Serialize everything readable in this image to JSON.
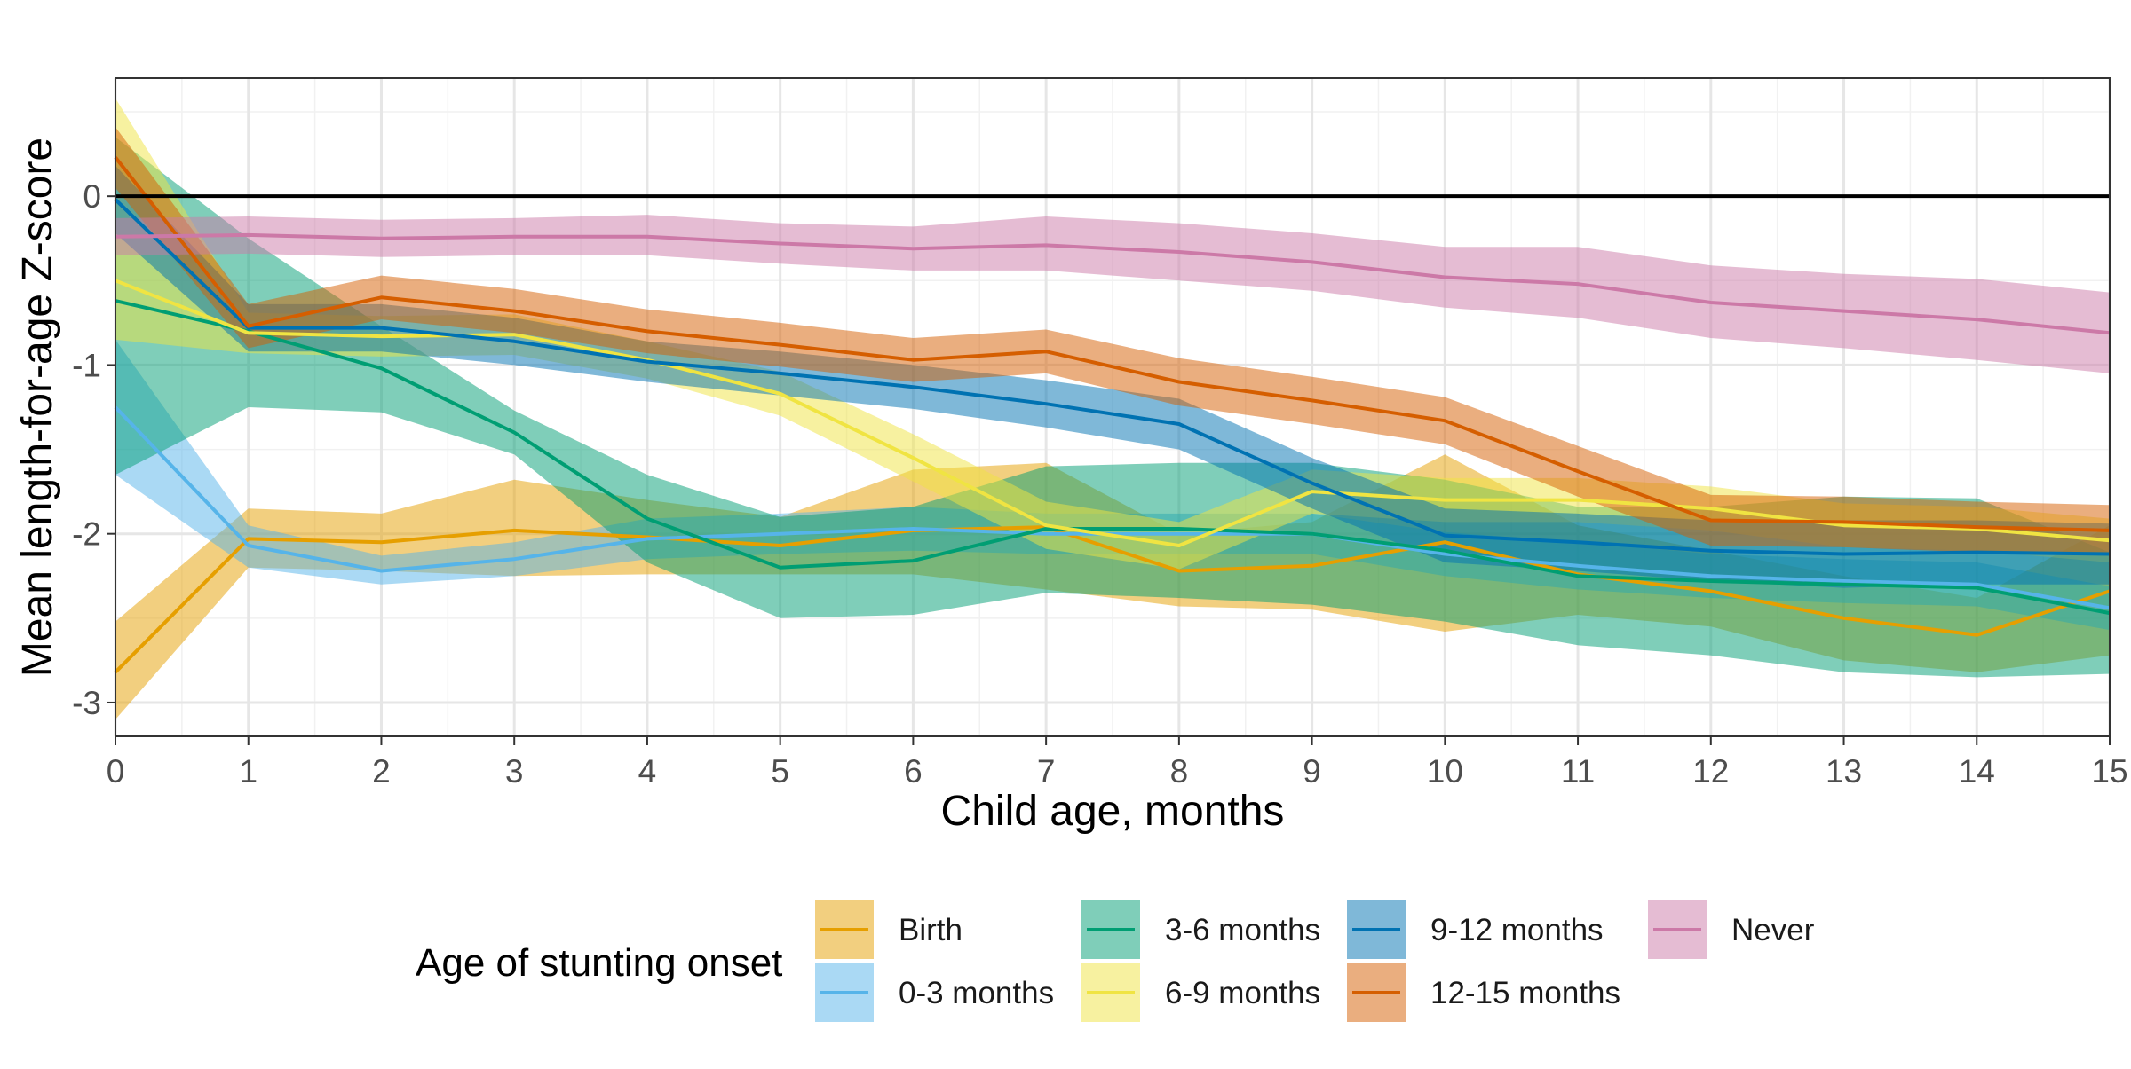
{
  "chart_data": {
    "type": "line",
    "title": "",
    "xlabel": "Child age, months",
    "ylabel": "Mean length-for-age Z-score",
    "xlim": [
      0,
      15
    ],
    "ylim": [
      -3.2,
      0.7
    ],
    "x_ticks": [
      0,
      1,
      2,
      3,
      4,
      5,
      6,
      7,
      8,
      9,
      10,
      11,
      12,
      13,
      14,
      15
    ],
    "y_ticks": [
      -3,
      -2,
      -1,
      0
    ],
    "y_tick_labels": [
      "-3",
      "-2",
      "-1",
      "0"
    ],
    "grid": true,
    "reference_line": {
      "y": 0,
      "color": "#000000"
    },
    "legend_title": "Age of stunting onset",
    "legend_position": "bottom",
    "x": [
      0,
      1,
      2,
      3,
      4,
      5,
      6,
      7,
      8,
      9,
      10,
      11,
      12,
      13,
      14,
      15
    ],
    "series": [
      {
        "name": "Birth",
        "color": "#E69F00",
        "values": [
          -2.82,
          -2.03,
          -2.05,
          -1.98,
          -2.02,
          -2.07,
          -1.98,
          -1.96,
          -2.22,
          -2.19,
          -2.05,
          -2.24,
          -2.34,
          -2.5,
          -2.6,
          -2.34
        ],
        "lower": [
          -3.1,
          -2.2,
          -2.22,
          -2.25,
          -2.24,
          -2.24,
          -2.24,
          -2.33,
          -2.43,
          -2.45,
          -2.58,
          -2.48,
          -2.55,
          -2.75,
          -2.82,
          -2.72
        ],
        "upper": [
          -2.52,
          -1.85,
          -1.88,
          -1.68,
          -1.8,
          -1.9,
          -1.62,
          -1.58,
          -2.0,
          -1.93,
          -1.53,
          -1.95,
          -2.1,
          -2.25,
          -2.38,
          -1.95
        ]
      },
      {
        "name": "0-3 months",
        "color": "#56B4E9",
        "values": [
          -1.25,
          -2.07,
          -2.22,
          -2.15,
          -2.03,
          -2.0,
          -1.97,
          -2.0,
          -2.0,
          -2.0,
          -2.12,
          -2.19,
          -2.25,
          -2.28,
          -2.3,
          -2.44
        ],
        "lower": [
          -1.65,
          -2.2,
          -2.3,
          -2.25,
          -2.15,
          -2.12,
          -2.1,
          -2.12,
          -2.12,
          -2.12,
          -2.25,
          -2.33,
          -2.38,
          -2.41,
          -2.43,
          -2.57
        ],
        "upper": [
          -0.85,
          -1.95,
          -2.13,
          -2.05,
          -1.91,
          -1.88,
          -1.84,
          -1.88,
          -1.88,
          -1.88,
          -1.99,
          -2.05,
          -2.12,
          -2.15,
          -2.17,
          -2.31
        ]
      },
      {
        "name": "3-6 months",
        "color": "#009E73",
        "values": [
          -0.62,
          -0.8,
          -1.02,
          -1.4,
          -1.91,
          -2.2,
          -2.16,
          -1.97,
          -1.97,
          -2.0,
          -2.1,
          -2.25,
          -2.28,
          -2.3,
          -2.32,
          -2.47
        ],
        "lower": [
          -1.65,
          -1.25,
          -1.28,
          -1.53,
          -2.17,
          -2.5,
          -2.48,
          -2.35,
          -2.38,
          -2.42,
          -2.52,
          -2.66,
          -2.72,
          -2.82,
          -2.85,
          -2.83
        ],
        "upper": [
          0.35,
          -0.25,
          -0.77,
          -1.27,
          -1.65,
          -1.9,
          -1.84,
          -1.6,
          -1.58,
          -1.58,
          -1.68,
          -1.84,
          -1.84,
          -1.78,
          -1.79,
          -2.11
        ]
      },
      {
        "name": "6-9 months",
        "color": "#F0E442",
        "values": [
          -0.5,
          -0.81,
          -0.83,
          -0.82,
          -0.97,
          -1.17,
          -1.55,
          -1.95,
          -2.07,
          -1.75,
          -1.8,
          -1.8,
          -1.85,
          -1.95,
          -1.97,
          -2.04
        ],
        "lower": [
          -0.85,
          -0.93,
          -0.95,
          -0.94,
          -1.08,
          -1.3,
          -1.69,
          -2.09,
          -2.21,
          -1.88,
          -1.93,
          -1.93,
          -1.98,
          -2.08,
          -2.1,
          -2.17
        ],
        "upper": [
          0.58,
          -0.69,
          -0.71,
          -0.7,
          -0.86,
          -1.04,
          -1.41,
          -1.81,
          -1.93,
          -1.62,
          -1.67,
          -1.67,
          -1.72,
          -1.82,
          -1.84,
          -1.91
        ]
      },
      {
        "name": "9-12 months",
        "color": "#0072B2",
        "values": [
          -0.02,
          -0.78,
          -0.78,
          -0.86,
          -0.98,
          -1.05,
          -1.13,
          -1.23,
          -1.35,
          -1.7,
          -2.01,
          -2.05,
          -2.1,
          -2.12,
          -2.11,
          -2.12
        ],
        "lower": [
          -0.22,
          -0.92,
          -0.92,
          -1.0,
          -1.1,
          -1.18,
          -1.26,
          -1.37,
          -1.5,
          -1.85,
          -2.17,
          -2.22,
          -2.28,
          -2.32,
          -2.3,
          -2.3
        ],
        "upper": [
          0.18,
          -0.64,
          -0.64,
          -0.72,
          -0.86,
          -0.92,
          -1.0,
          -1.09,
          -1.2,
          -1.55,
          -1.85,
          -1.88,
          -1.92,
          -1.92,
          -1.92,
          -1.94
        ]
      },
      {
        "name": "12-15 months",
        "color": "#D55E00",
        "values": [
          0.23,
          -0.77,
          -0.6,
          -0.68,
          -0.8,
          -0.88,
          -0.97,
          -0.92,
          -1.1,
          -1.21,
          -1.33,
          -1.63,
          -1.92,
          -1.93,
          -1.96,
          -1.98
        ],
        "lower": [
          0.05,
          -0.9,
          -0.73,
          -0.81,
          -0.93,
          -1.01,
          -1.1,
          -1.05,
          -1.24,
          -1.35,
          -1.47,
          -1.78,
          -2.07,
          -2.08,
          -2.11,
          -2.13
        ],
        "upper": [
          0.41,
          -0.64,
          -0.47,
          -0.55,
          -0.67,
          -0.75,
          -0.84,
          -0.79,
          -0.96,
          -1.07,
          -1.19,
          -1.48,
          -1.77,
          -1.78,
          -1.81,
          -1.83
        ]
      },
      {
        "name": "Never",
        "color": "#CC79A7",
        "values": [
          -0.24,
          -0.23,
          -0.25,
          -0.24,
          -0.24,
          -0.28,
          -0.31,
          -0.29,
          -0.33,
          -0.39,
          -0.48,
          -0.52,
          -0.63,
          -0.68,
          -0.73,
          -0.81
        ],
        "lower": [
          -0.35,
          -0.34,
          -0.36,
          -0.35,
          -0.35,
          -0.4,
          -0.44,
          -0.44,
          -0.5,
          -0.56,
          -0.66,
          -0.72,
          -0.84,
          -0.9,
          -0.97,
          -1.05
        ],
        "upper": [
          -0.13,
          -0.12,
          -0.14,
          -0.13,
          -0.11,
          -0.16,
          -0.18,
          -0.12,
          -0.16,
          -0.22,
          -0.3,
          -0.3,
          -0.41,
          -0.46,
          -0.49,
          -0.57
        ]
      }
    ]
  }
}
